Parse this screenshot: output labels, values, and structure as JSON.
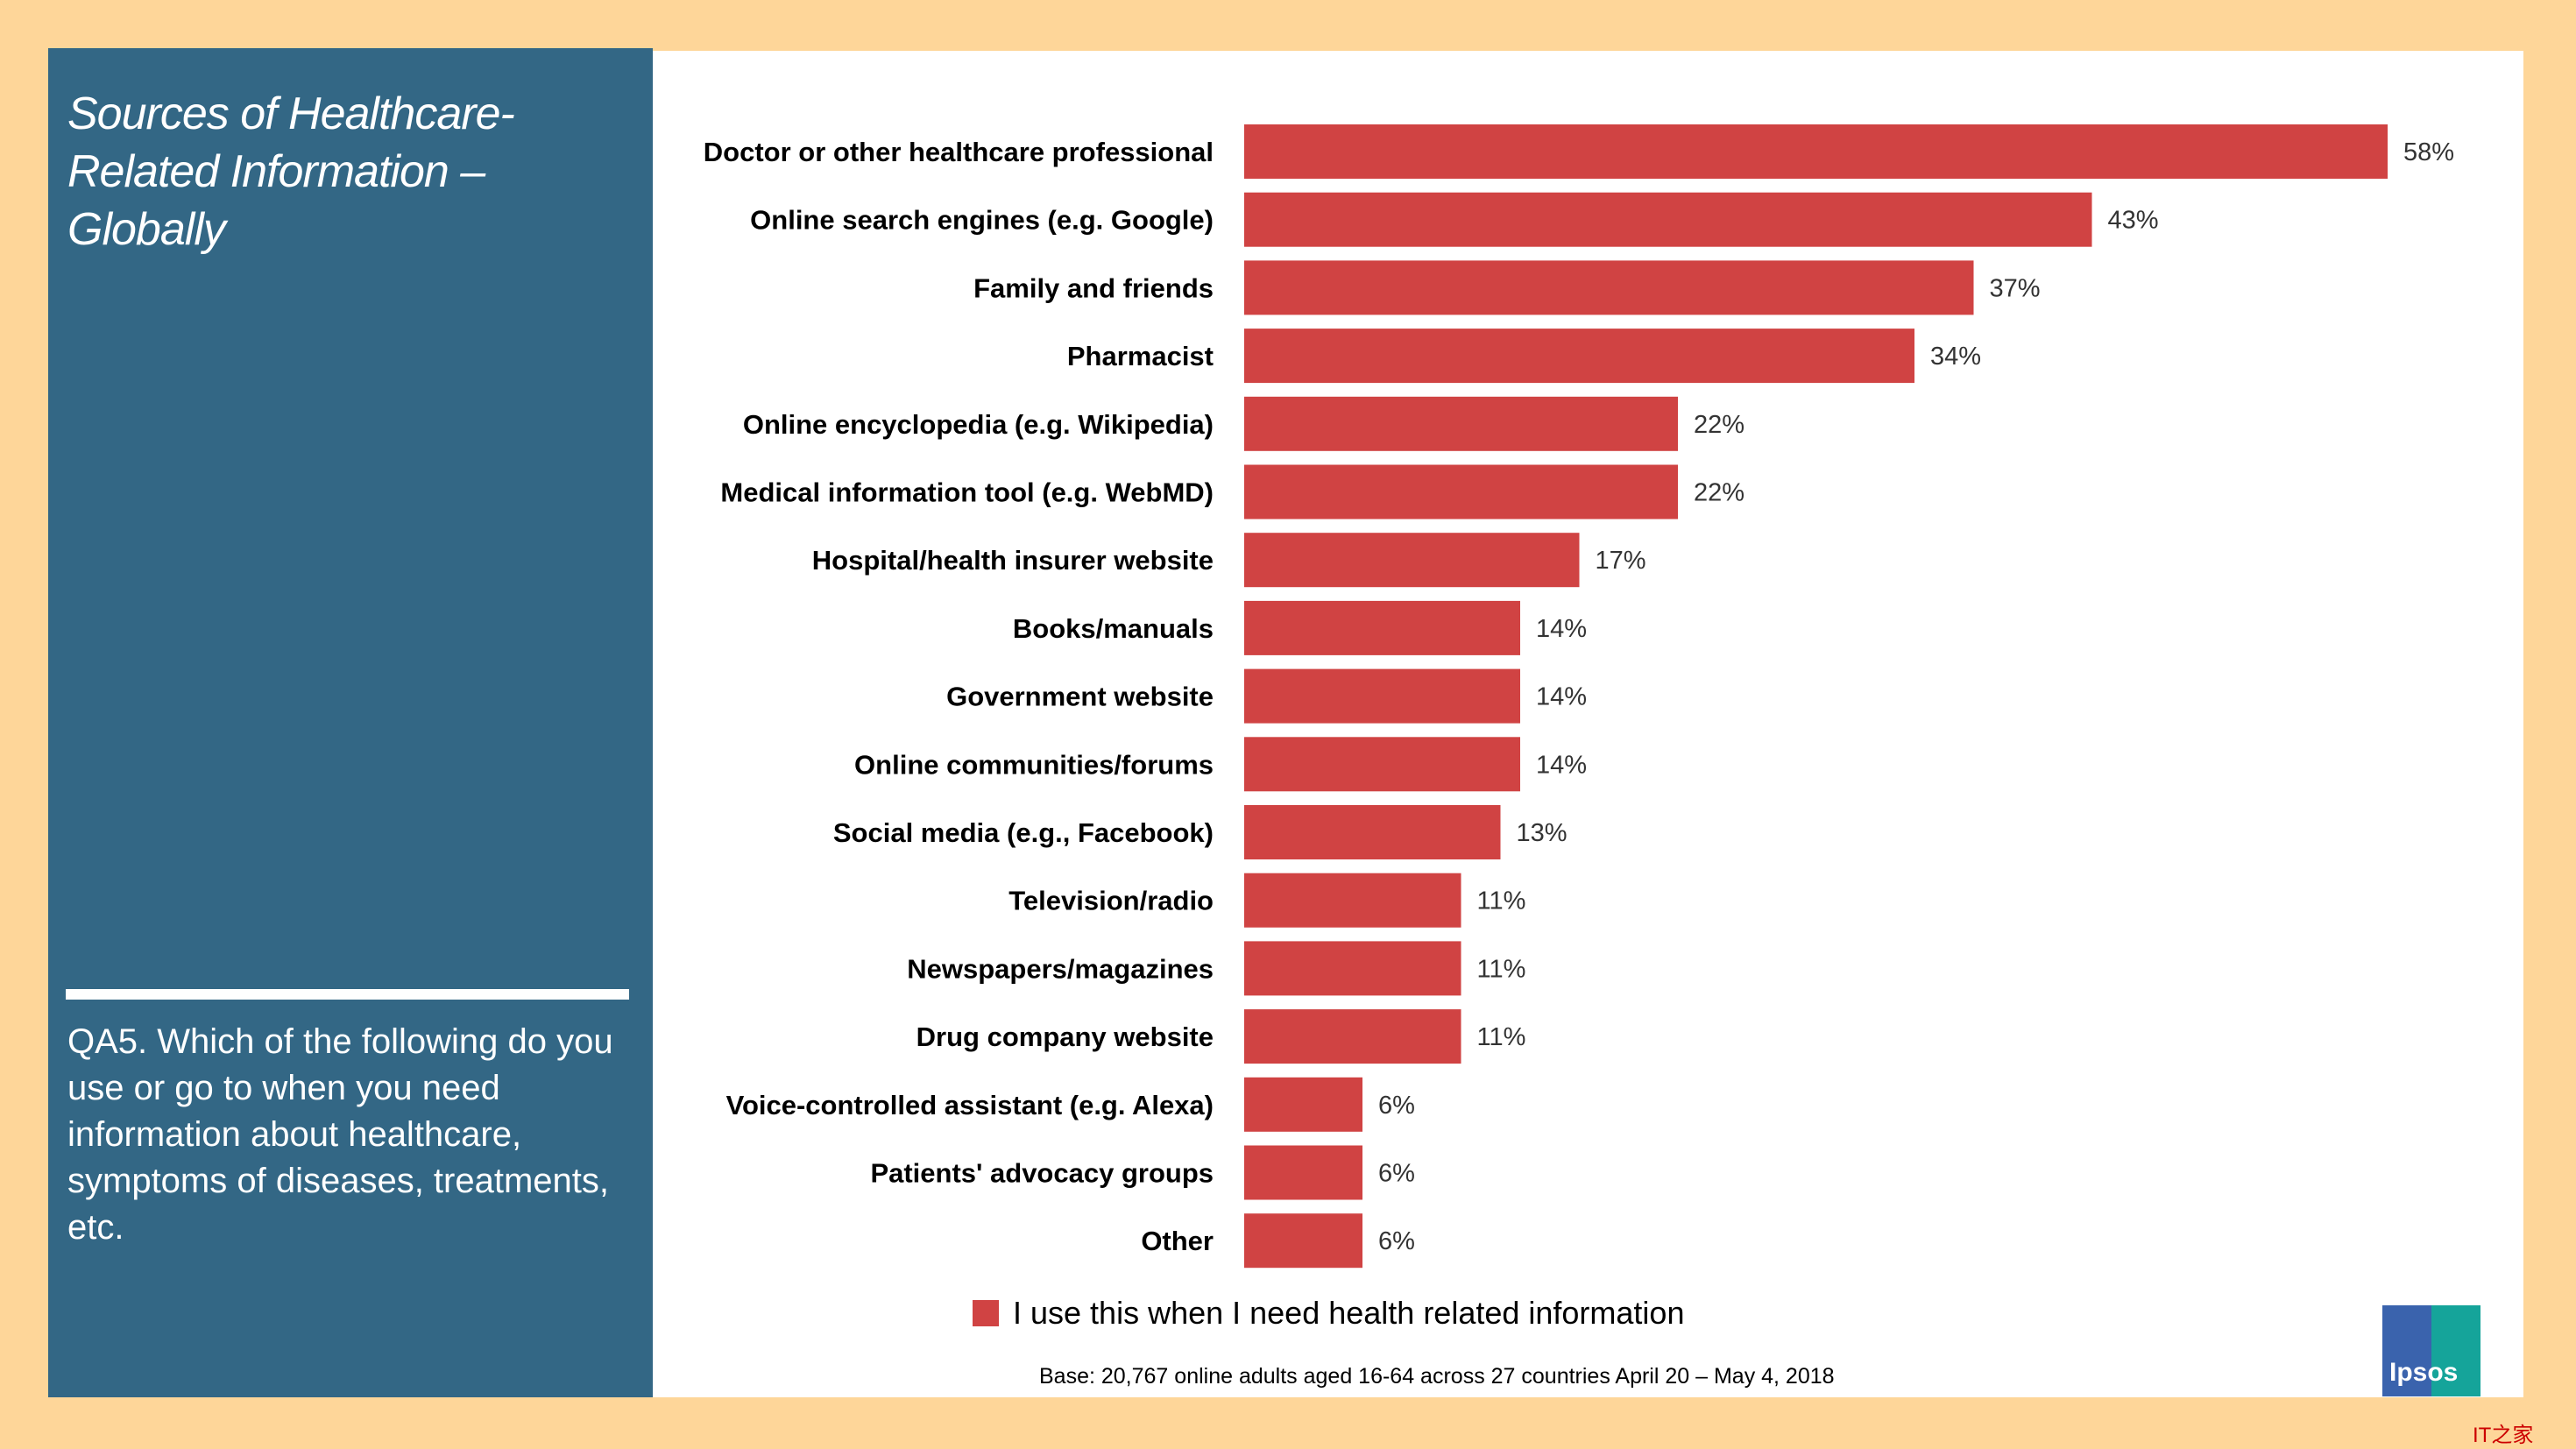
{
  "panel": {
    "title": "Sources of Healthcare-Related Information – Globally",
    "question": "QA5. Which of the following do you use or go to when you need information about healthcare, symptoms of diseases, treatments, etc."
  },
  "chart_data": {
    "type": "bar",
    "orientation": "horizontal",
    "categories": [
      "Doctor or other healthcare professional",
      "Online search engines (e.g. Google)",
      "Family and friends",
      "Pharmacist",
      "Online encyclopedia (e.g. Wikipedia)",
      "Medical information tool (e.g. WebMD)",
      "Hospital/health insurer website",
      "Books/manuals",
      "Government website",
      "Online communities/forums",
      "Social media (e.g., Facebook)",
      "Television/radio",
      "Newspapers/magazines",
      "Drug company website",
      "Voice-controlled assistant (e.g. Alexa)",
      "Patients' advocacy groups",
      "Other"
    ],
    "series": [
      {
        "name": "I use this when I need health related information",
        "values": [
          58,
          43,
          37,
          34,
          22,
          22,
          17,
          14,
          14,
          14,
          13,
          11,
          11,
          11,
          6,
          6,
          6
        ],
        "color": "#d04343"
      }
    ],
    "value_format": "percent",
    "grid": false,
    "legend": "bottom"
  },
  "footer": {
    "base": "Base: 20,767 online adults aged 16-64 across 27 countries  April 20 – May 4, 2018",
    "logo": "Ipsos",
    "watermark": "IT之家"
  },
  "colors": {
    "panel": "#336785",
    "bar": "#d04343",
    "background": "#fed699"
  }
}
